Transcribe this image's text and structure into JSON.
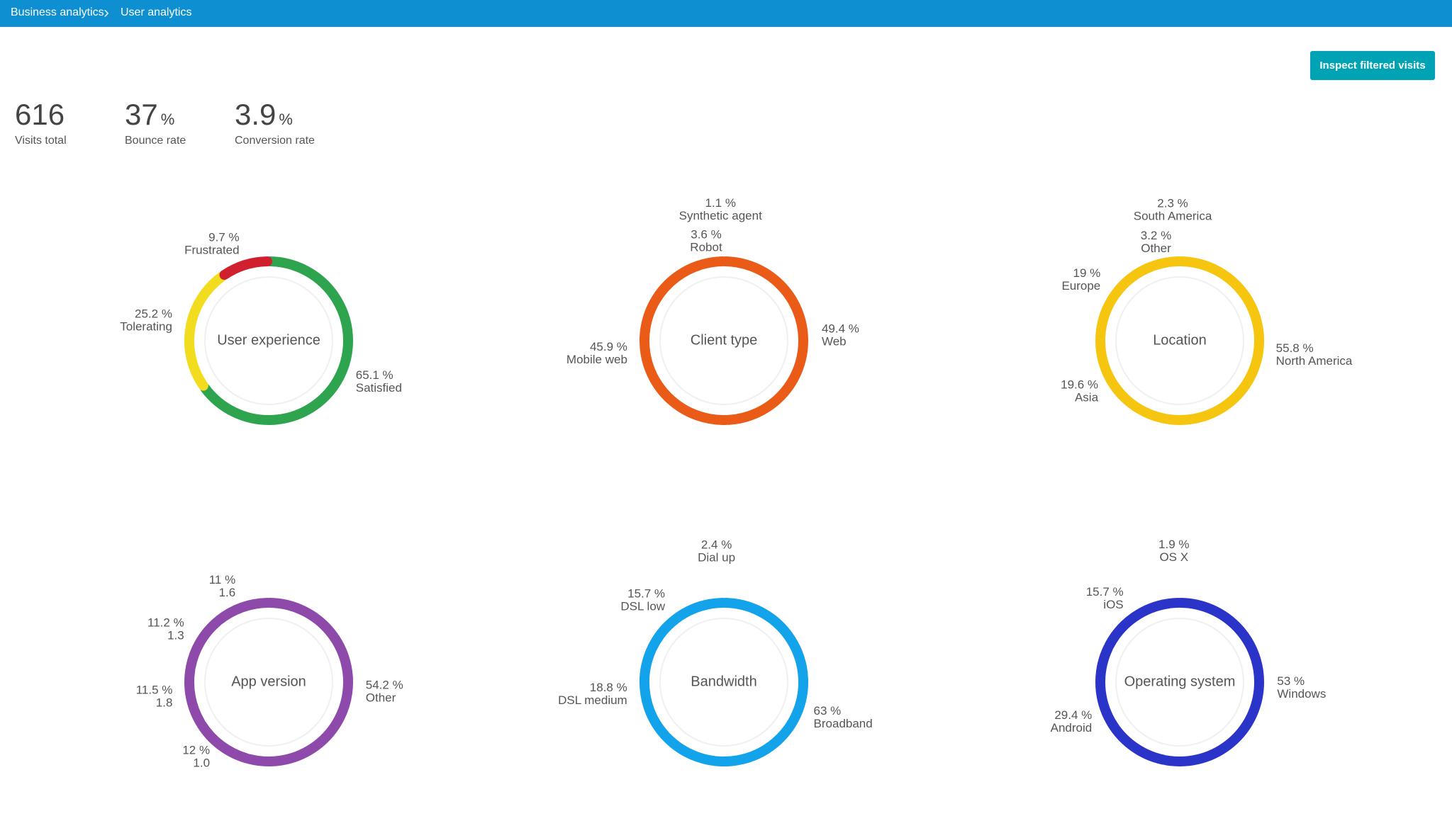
{
  "header": {
    "breadcrumbs": [
      "Business analytics",
      "User analytics"
    ],
    "button": "Inspect filtered visits"
  },
  "kpis": [
    {
      "value": 616,
      "label": "Visits total"
    },
    {
      "value": 37,
      "unit": "%",
      "label": "Bounce rate"
    },
    {
      "value": 3.9,
      "unit": "%",
      "label": "Conversion rate"
    }
  ],
  "chart_data": [
    {
      "type": "donut",
      "title": "User experience",
      "categories": [
        "Satisfied",
        "Tolerating",
        "Frustrated"
      ],
      "values": [
        65.1,
        25.2,
        9.7
      ],
      "value_labels": [
        "65.1 %",
        "25.2 %",
        "9.7 %"
      ],
      "colors": [
        "#2ea44f",
        "#f2dc1e",
        "#d0202e"
      ]
    },
    {
      "type": "donut",
      "title": "Client type",
      "categories": [
        "Web",
        "Mobile web",
        "Robot",
        "Synthetic agent"
      ],
      "values": [
        49.4,
        45.9,
        3.6,
        1.1
      ],
      "value_labels": [
        "49.4 %",
        "45.9 %",
        "3.6 %",
        "1.1 %"
      ],
      "colors": [
        "#ea5b17",
        "#ea5b17",
        "#ea5b17",
        "#ea5b17"
      ]
    },
    {
      "type": "donut",
      "title": "Location",
      "categories": [
        "North America",
        "Asia",
        "Europe",
        "Other",
        "South America"
      ],
      "values": [
        55.8,
        19.6,
        19,
        3.2,
        2.3
      ],
      "value_labels": [
        "55.8 %",
        "19.6 %",
        "19 %",
        "3.2 %",
        "2.3 %"
      ],
      "colors": [
        "#f5c50f",
        "#f5c50f",
        "#f5c50f",
        "#f5c50f",
        "#f5c50f"
      ]
    },
    {
      "type": "donut",
      "title": "App version",
      "categories": [
        "Other",
        "1.0",
        "1.8",
        "1.3",
        "1.6"
      ],
      "values": [
        54.2,
        12,
        11.5,
        11.2,
        11
      ],
      "value_labels": [
        "54.2 %",
        "12 %",
        "11.5 %",
        "11.2 %",
        "11 %"
      ],
      "colors": [
        "#8e4aab",
        "#8e4aab",
        "#8e4aab",
        "#8e4aab",
        "#8e4aab"
      ]
    },
    {
      "type": "donut",
      "title": "Bandwidth",
      "categories": [
        "Broadband",
        "DSL medium",
        "DSL low",
        "Dial up"
      ],
      "values": [
        63,
        18.8,
        15.7,
        2.4
      ],
      "value_labels": [
        "63 %",
        "18.8 %",
        "15.7 %",
        "2.4 %"
      ],
      "colors": [
        "#12a3ea",
        "#12a3ea",
        "#12a3ea",
        "#12a3ea"
      ]
    },
    {
      "type": "donut",
      "title": "Operating system",
      "categories": [
        "Windows",
        "Android",
        "iOS",
        "OS X"
      ],
      "values": [
        53,
        29.4,
        15.7,
        1.9
      ],
      "value_labels": [
        "53 %",
        "29.4 %",
        "15.7 %",
        "1.9 %"
      ],
      "colors": [
        "#2b34c9",
        "#2b34c9",
        "#2b34c9",
        "#2b34c9"
      ]
    }
  ]
}
